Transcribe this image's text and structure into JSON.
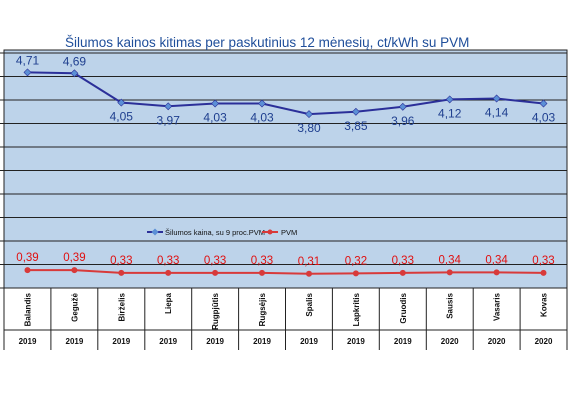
{
  "chart_data": {
    "type": "line",
    "title": "Šilumos kainos kitimas per paskutinius 12 mėnesių, ct/kWh su PVM",
    "categories": [
      "Balandis",
      "Gegužė",
      "Birželis",
      "Liepa",
      "Rugpjūtis",
      "Rugsėjis",
      "Spalis",
      "Lapkritis",
      "Gruodis",
      "Sausis",
      "Vasaris",
      "Kovas"
    ],
    "years": [
      "2019",
      "2019",
      "2019",
      "2019",
      "2019",
      "2019",
      "2019",
      "2019",
      "2019",
      "2020",
      "2020",
      "2020"
    ],
    "series": [
      {
        "name": "Šilumos kaina, su 9 proc.PVM",
        "values": [
          4.71,
          4.69,
          4.05,
          3.97,
          4.03,
          4.03,
          3.8,
          3.85,
          3.96,
          4.12,
          4.14,
          4.03
        ],
        "labels": [
          "4,71",
          "4,69",
          "4,05",
          "3,97",
          "4,03",
          "4,03",
          "3,80",
          "3,85",
          "3,96",
          "4,12",
          "4,14",
          "4,03"
        ],
        "color": "#2B2F99",
        "marker_color": "#5B8FD6",
        "label_color": "#1F3F8F"
      },
      {
        "name": "PVM",
        "values": [
          0.39,
          0.39,
          0.33,
          0.33,
          0.33,
          0.33,
          0.31,
          0.32,
          0.33,
          0.34,
          0.34,
          0.33
        ],
        "labels": [
          "0,39",
          "0,39",
          "0,33",
          "0,33",
          "0,33",
          "0,33",
          "0,31",
          "0,32",
          "0,33",
          "0,34",
          "0,34",
          "0,33"
        ],
        "color": "#D83A3A",
        "marker_color": "#D83A3A",
        "label_color": "#E01010"
      }
    ],
    "ylim": [
      0,
      5.2
    ],
    "grid": true,
    "legend_position": "middle-center",
    "plot_background": "#BDD3EA",
    "title_color": "#1F4E9A"
  }
}
